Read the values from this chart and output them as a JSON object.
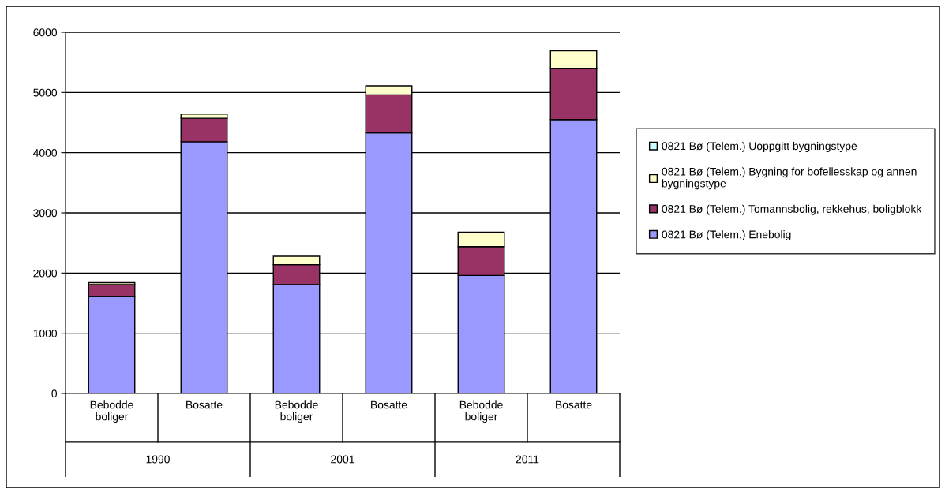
{
  "chart_data": {
    "type": "bar",
    "stacked": true,
    "categories": [
      "Bebodde boliger",
      "Bosatte",
      "Bebodde boliger",
      "Bosatte",
      "Bebodde boliger",
      "Bosatte"
    ],
    "series": [
      {
        "name": "0821 Bø (Telem.) Enebolig",
        "color": "#9999ff",
        "values": [
          1610,
          4180,
          1810,
          4330,
          1960,
          4550
        ]
      },
      {
        "name": "0821 Bø (Telem.) Tomannsbolig, rekkehus, boligblokk",
        "color": "#993366",
        "values": [
          200,
          390,
          330,
          630,
          480,
          850
        ]
      },
      {
        "name": "0821 Bø (Telem.) Bygning for bofellesskap og annen bygningstype",
        "color": "#ffffcc",
        "values": [
          30,
          70,
          140,
          150,
          240,
          290
        ]
      },
      {
        "name": "0821 Bø (Telem.) Uoppgitt bygningstype",
        "color": "#ccffff",
        "values": [
          null,
          null,
          null,
          null,
          null,
          null
        ]
      }
    ],
    "annotations": [
      "1990",
      "2001",
      "2011"
    ],
    "ylim": [
      0,
      6000
    ],
    "yticks": [
      0,
      1000,
      2000,
      3000,
      4000,
      5000,
      6000
    ],
    "grid": "y",
    "legend": "right"
  }
}
